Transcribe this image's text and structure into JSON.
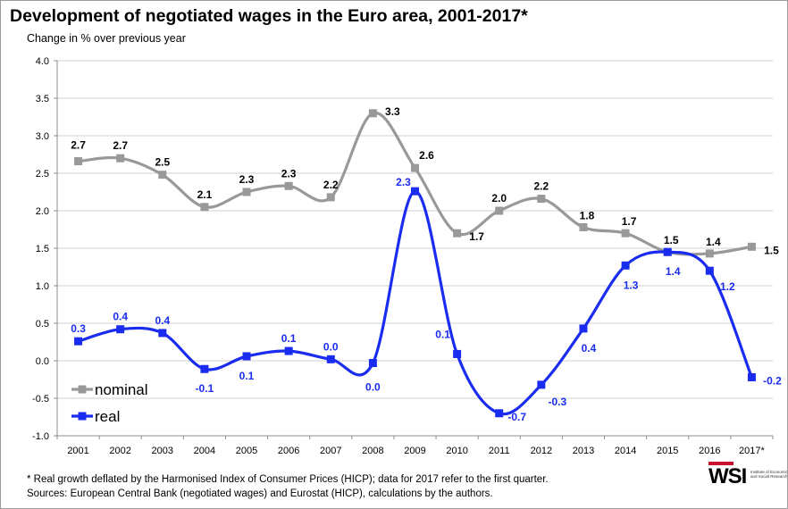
{
  "title": "Development of negotiated wages in the Euro area, 2001-2017*",
  "subtitle": "Change in % over previous year",
  "footnote_1": "* Real growth deflated by the Harmonised Index of Consumer Prices (HICP); data for 2017 refer to the first quarter.",
  "footnote_2": "Sources: European Central Bank (negotiated wages) and Eurostat (HICP), calculations by the authors.",
  "logo": {
    "name": "WSI",
    "subtitle": "Institute of Economic and Social Research"
  },
  "colors": {
    "nominal": "#999999",
    "real": "#1a2cf0",
    "grid": "#d0d0d0",
    "axis": "#8c8c8c",
    "brand": "#c8102e"
  },
  "chart_data": {
    "type": "line",
    "title": "Development of negotiated wages in the Euro area, 2001-2017*",
    "ylabel": "Change in % over previous year",
    "xlabel": "",
    "ylim": [
      -1.0,
      4.0
    ],
    "yticks": [
      "-1.0",
      "-0.5",
      "0.0",
      "0.5",
      "1.0",
      "1.5",
      "2.0",
      "2.5",
      "3.0",
      "3.5",
      "4.0"
    ],
    "categories": [
      "2001",
      "2002",
      "2003",
      "2004",
      "2005",
      "2006",
      "2007",
      "2008",
      "2009",
      "2010",
      "2011",
      "2012",
      "2013",
      "2014",
      "2015",
      "2016",
      "2017*"
    ],
    "grid": true,
    "legend": "bottom-left",
    "series": [
      {
        "name": "nominal",
        "values": [
          2.66,
          2.7,
          2.48,
          2.05,
          2.25,
          2.33,
          2.18,
          3.3,
          2.57,
          1.7,
          2.0,
          2.16,
          1.78,
          1.7,
          1.45,
          1.43,
          1.52
        ],
        "labels": [
          "2.7",
          "2.7",
          "2.5",
          "2.1",
          "2.3",
          "2.3",
          "2.2",
          "3.3",
          "2.6",
          "1.7",
          "2.0",
          "2.2",
          "1.8",
          "1.7",
          "1.5",
          "1.4",
          "1.5"
        ]
      },
      {
        "name": "real",
        "values": [
          0.26,
          0.42,
          0.37,
          -0.11,
          0.06,
          0.13,
          0.02,
          -0.03,
          2.26,
          0.09,
          -0.7,
          -0.32,
          0.43,
          1.27,
          1.45,
          1.2,
          -0.22
        ],
        "labels": [
          "0.3",
          "0.4",
          "0.4",
          "-0.1",
          "0.1",
          "0.1",
          "0.0",
          "0.0",
          "2.3",
          "0.1",
          "-0.7",
          "-0.3",
          "0.4",
          "1.3",
          "1.4",
          "1.2",
          "-0.2"
        ]
      }
    ]
  }
}
